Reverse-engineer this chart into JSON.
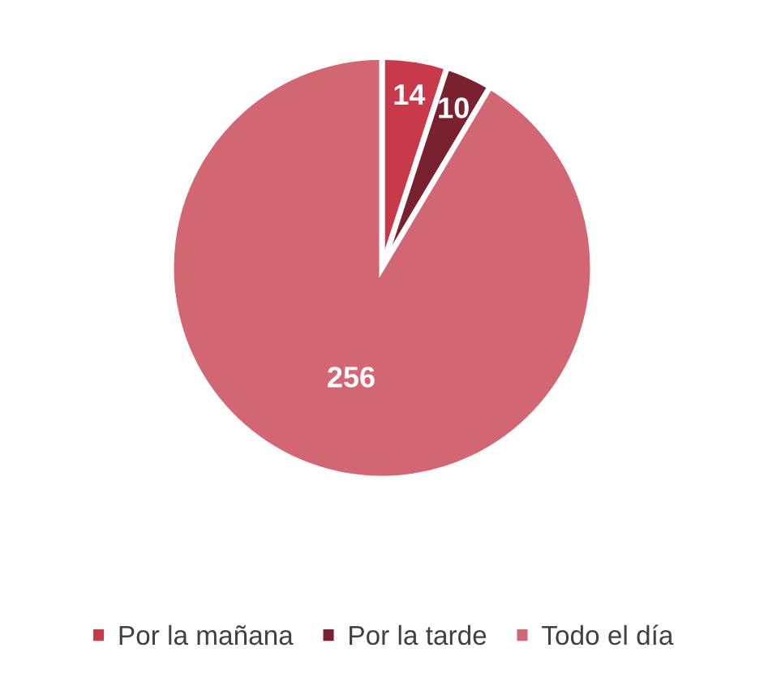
{
  "chart_data": {
    "type": "pie",
    "categories": [
      "Por la mañana",
      "Por la tarde",
      "Todo el día"
    ],
    "values": [
      14,
      10,
      256
    ],
    "colors": [
      "#c8394b",
      "#7a2130",
      "#d26773"
    ],
    "data_labels": true,
    "legend": "bottom"
  }
}
